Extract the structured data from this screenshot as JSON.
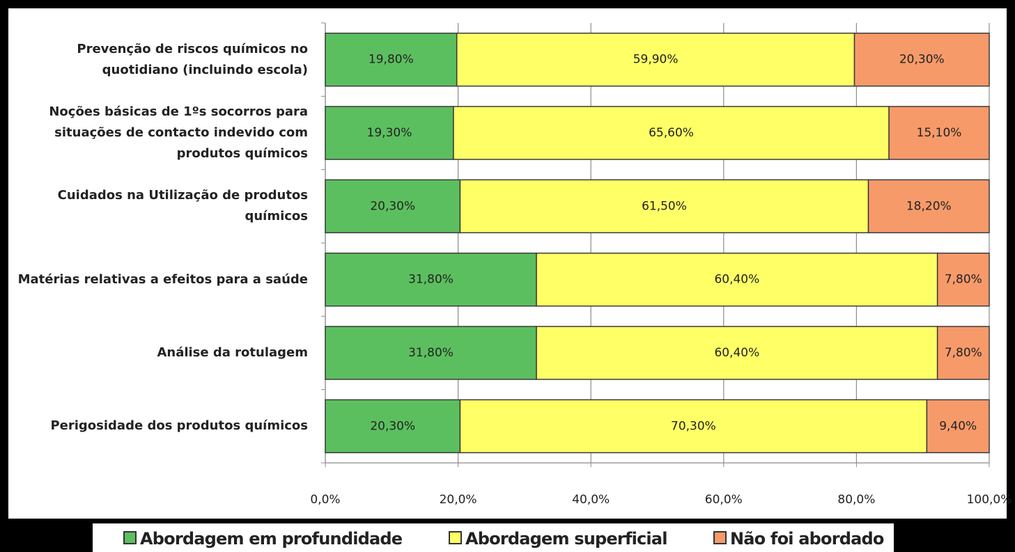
{
  "chart_data": {
    "type": "stacked_barh",
    "categories": [
      "Prevenção de riscos químicos no\nquotidiano (incluindo escola)",
      "Noções básicas de 1ºs socorros para\nsituações de contacto indevido com\nprodutos químicos",
      "Cuidados na Utilização de produtos\nquímicos",
      "Matérias relativas a efeitos para a saúde",
      "Análise da rotulagem",
      "Perigosidade dos produtos químicos"
    ],
    "series": [
      {
        "name": "Abordagem em profundidade",
        "color": "#5cbf5f",
        "values": [
          19.8,
          19.3,
          20.3,
          31.8,
          31.8,
          20.3
        ],
        "value_labels": [
          "19,80%",
          "19,30%",
          "20,30%",
          "31,80%",
          "31,80%",
          "20,30%"
        ]
      },
      {
        "name": "Abordagem superficial",
        "color": "#ffff66",
        "values": [
          59.9,
          65.6,
          61.5,
          60.4,
          60.4,
          70.3
        ],
        "value_labels": [
          "59,90%",
          "65,60%",
          "61,50%",
          "60,40%",
          "60,40%",
          "70,30%"
        ]
      },
      {
        "name": "Não foi abordado",
        "color": "#f79a6a",
        "values": [
          20.3,
          15.1,
          18.2,
          7.8,
          7.8,
          9.4
        ],
        "value_labels": [
          "20,30%",
          "15,10%",
          "18,20%",
          "7,80%",
          "7,80%",
          "9,40%"
        ]
      }
    ],
    "xlim": [
      0,
      100
    ],
    "xticks": [
      {
        "value": 0,
        "label": "0,0%"
      },
      {
        "value": 20,
        "label": "20,0%"
      },
      {
        "value": 40,
        "label": "40,0%"
      },
      {
        "value": 60,
        "label": "60,0%"
      },
      {
        "value": 80,
        "label": "80,0%"
      },
      {
        "value": 100,
        "label": "100,0%"
      }
    ],
    "grid": true,
    "legend": "bottom"
  }
}
